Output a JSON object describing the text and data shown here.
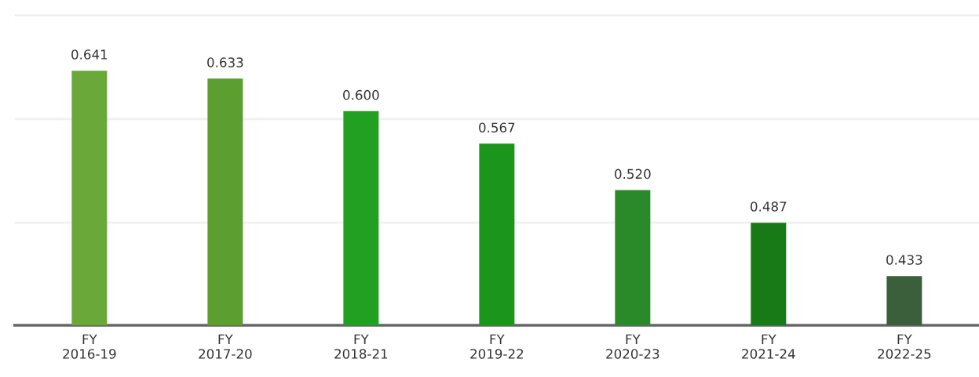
{
  "chart_data": {
    "type": "bar",
    "categories": [
      "FY\n2016-19",
      "FY\n2017-20",
      "FY\n2018-21",
      "FY\n2019-22",
      "FY\n2020-23",
      "FY\n2021-24",
      "FY\n2022-25"
    ],
    "values": [
      0.641,
      0.633,
      0.6,
      0.567,
      0.52,
      0.487,
      0.433
    ],
    "colors": [
      "#6aa83a",
      "#5c9f30",
      "#22a022",
      "#1c951c",
      "#2a8a2a",
      "#177a17",
      "#3b5e3b"
    ],
    "value_labels": [
      "0.641",
      "0.633",
      "0.600",
      "0.567",
      "0.520",
      "0.487",
      "0.433"
    ],
    "ylim": [
      0.383,
      0.7
    ],
    "yticks": [
      {
        "value": 0.487,
        "label": null
      },
      {
        "value": 0.592,
        "label": null
      },
      {
        "value": 0.697,
        "label": null
      }
    ],
    "tick_labels": "x",
    "grid": "y"
  }
}
